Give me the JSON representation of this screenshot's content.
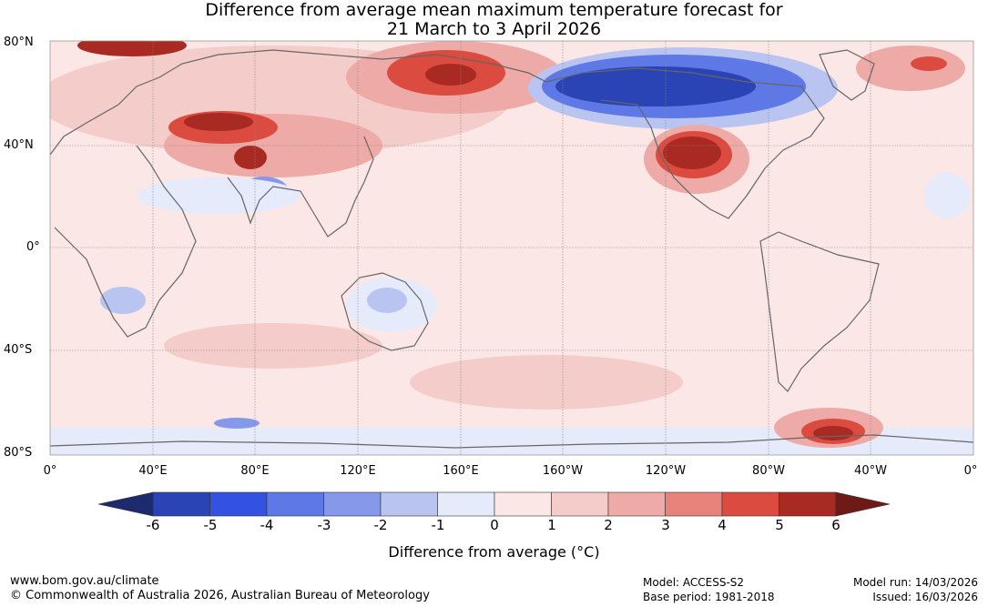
{
  "title": {
    "line1": "Difference from average mean maximum temperature forecast for",
    "line2": "21 March to 3 April 2026"
  },
  "map": {
    "lat_labels": [
      "80°N",
      "40°N",
      "0°",
      "40°S",
      "80°S"
    ],
    "lon_labels": [
      "0°",
      "40°E",
      "80°E",
      "120°E",
      "160°E",
      "160°W",
      "120°W",
      "80°W",
      "40°W",
      "0°"
    ]
  },
  "colorbar": {
    "label": "Difference from average (°C)",
    "ticks": [
      "-6",
      "-5",
      "-4",
      "-3",
      "-2",
      "-1",
      "0",
      "1",
      "2",
      "3",
      "4",
      "5",
      "6"
    ],
    "colors": {
      "below_min": "#1d2a6e",
      "bins": [
        "#2a43b5",
        "#3452e2",
        "#5e78e6",
        "#8598ea",
        "#b9c4f1",
        "#e6ebfb",
        "#fbe7e6",
        "#f4cdca",
        "#eeaaa6",
        "#e8837c",
        "#db4b40",
        "#a82a22"
      ],
      "above_max": "#6e1a16"
    }
  },
  "footer": {
    "website": "www.bom.gov.au/climate",
    "copyright": "© Commonwealth of Australia 2026, Australian Bureau of Meteorology",
    "model": "Model: ACCESS-S2",
    "base_period": "Base period: 1981-2018",
    "model_run": "Model run: 14/03/2026",
    "issued": "Issued: 16/03/2026"
  }
}
